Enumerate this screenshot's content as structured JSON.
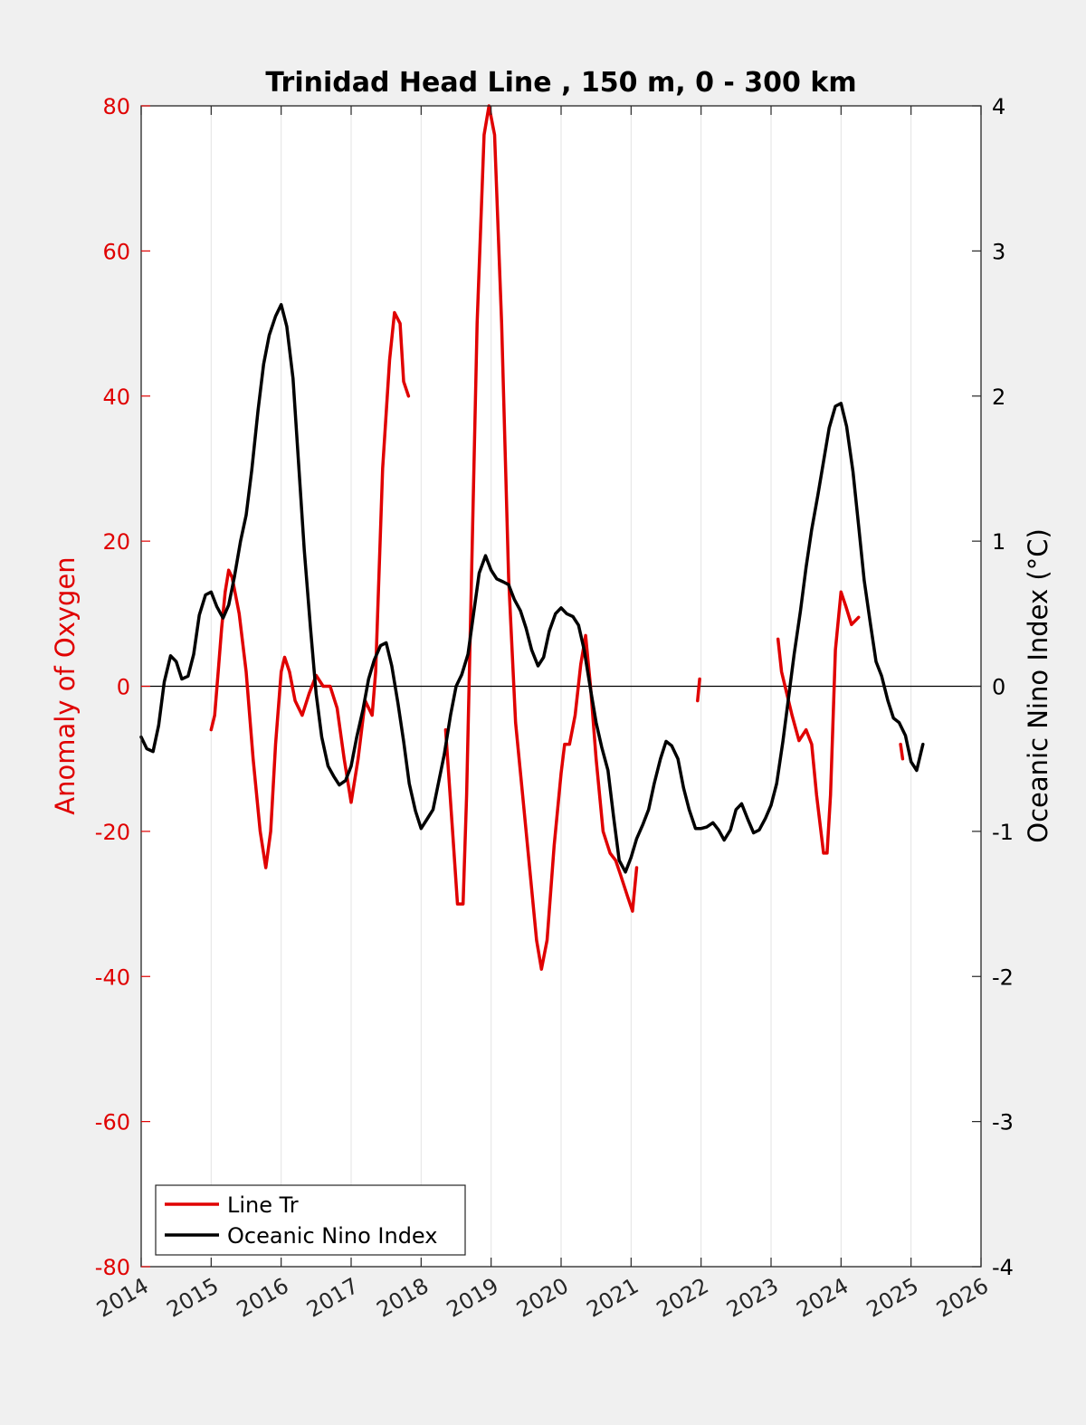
{
  "chart_data": {
    "type": "line",
    "title": "Trinidad Head Line , 150 m, 0 - 300 km",
    "xlabel": "",
    "ylabel_left": "Anomaly of Oxygen",
    "ylabel_right": "Oceanic Nino Index (°C)",
    "xlim": [
      2014,
      2026
    ],
    "ylim_left": [
      -80,
      80
    ],
    "ylim_right": [
      -4,
      4
    ],
    "x_ticks": [
      "2014",
      "2015",
      "2016",
      "2017",
      "2018",
      "2019",
      "2020",
      "2021",
      "2022",
      "2023",
      "2024",
      "2025",
      "2026"
    ],
    "y_ticks_left": [
      "80",
      "60",
      "40",
      "20",
      "0",
      "-20",
      "-40",
      "-60",
      "-80"
    ],
    "y_ticks_right": [
      "4",
      "3",
      "2",
      "1",
      "0",
      "-1",
      "-2",
      "-3",
      "-4"
    ],
    "grid": "vertical",
    "legend": "bottom-left",
    "colors": {
      "left_axis": "#e00000",
      "right_axis": "#000000",
      "series_red": "#e00000",
      "series_black": "#000000",
      "zero_line": "#000000"
    },
    "series": [
      {
        "name": "Line Tr",
        "axis": "left",
        "color": "#e00000",
        "segments": [
          [
            [
              2015.0,
              -6
            ],
            [
              2015.05,
              -4
            ],
            [
              2015.1,
              2
            ],
            [
              2015.15,
              8
            ],
            [
              2015.2,
              13
            ],
            [
              2015.25,
              16
            ],
            [
              2015.3,
              15
            ],
            [
              2015.4,
              10
            ],
            [
              2015.5,
              2
            ],
            [
              2015.6,
              -10
            ],
            [
              2015.7,
              -20
            ],
            [
              2015.78,
              -25
            ],
            [
              2015.85,
              -20
            ],
            [
              2015.92,
              -8
            ],
            [
              2016.0,
              2
            ],
            [
              2016.05,
              4
            ],
            [
              2016.12,
              2
            ],
            [
              2016.2,
              -2
            ],
            [
              2016.3,
              -4
            ],
            [
              2016.4,
              -1
            ],
            [
              2016.5,
              1.5
            ],
            [
              2016.6,
              0
            ],
            [
              2016.7,
              0
            ],
            [
              2016.8,
              -3
            ],
            [
              2016.9,
              -10
            ],
            [
              2017.0,
              -16
            ],
            [
              2017.1,
              -10
            ],
            [
              2017.2,
              -2
            ],
            [
              2017.3,
              -4
            ],
            [
              2017.35,
              2
            ],
            [
              2017.45,
              30
            ],
            [
              2017.55,
              45
            ],
            [
              2017.62,
              51.5
            ],
            [
              2017.7,
              50
            ],
            [
              2017.75,
              42
            ],
            [
              2017.82,
              40
            ]
          ],
          [
            [
              2018.35,
              -6
            ],
            [
              2018.45,
              -20
            ],
            [
              2018.52,
              -30
            ],
            [
              2018.6,
              -30
            ],
            [
              2018.65,
              -15
            ],
            [
              2018.72,
              15
            ],
            [
              2018.8,
              50
            ],
            [
              2018.9,
              76
            ],
            [
              2018.97,
              80
            ],
            [
              2019.05,
              76
            ],
            [
              2019.15,
              50
            ],
            [
              2019.25,
              15
            ],
            [
              2019.35,
              -5
            ],
            [
              2019.45,
              -15
            ],
            [
              2019.55,
              -25
            ],
            [
              2019.65,
              -35
            ],
            [
              2019.72,
              -39
            ],
            [
              2019.8,
              -35
            ],
            [
              2019.9,
              -22
            ],
            [
              2020.0,
              -12
            ],
            [
              2020.05,
              -8
            ],
            [
              2020.12,
              -8
            ],
            [
              2020.2,
              -4
            ],
            [
              2020.28,
              3
            ],
            [
              2020.35,
              7
            ],
            [
              2020.42,
              0
            ],
            [
              2020.5,
              -10
            ],
            [
              2020.6,
              -20
            ],
            [
              2020.7,
              -23
            ],
            [
              2020.78,
              -24
            ],
            [
              2020.85,
              -26
            ],
            [
              2020.95,
              -29
            ],
            [
              2021.02,
              -31
            ],
            [
              2021.08,
              -25
            ]
          ],
          [
            [
              2021.95,
              -2
            ],
            [
              2021.98,
              1
            ]
          ],
          [
            [
              2023.1,
              6.5
            ],
            [
              2023.15,
              2
            ],
            [
              2023.3,
              -4
            ],
            [
              2023.4,
              -7.5
            ],
            [
              2023.5,
              -6
            ],
            [
              2023.58,
              -8
            ],
            [
              2023.65,
              -15
            ],
            [
              2023.75,
              -23
            ],
            [
              2023.8,
              -23
            ],
            [
              2023.85,
              -15
            ],
            [
              2023.92,
              5
            ],
            [
              2024.0,
              13
            ],
            [
              2024.07,
              11
            ],
            [
              2024.15,
              8.5
            ],
            [
              2024.25,
              9.5
            ]
          ],
          [
            [
              2024.85,
              -8
            ],
            [
              2024.88,
              -10
            ]
          ]
        ]
      },
      {
        "name": "Oceanic Nino Index",
        "axis": "right",
        "color": "#000000",
        "segments": [
          [
            [
              2014.0,
              -0.35
            ],
            [
              2014.08,
              -0.43
            ],
            [
              2014.17,
              -0.45
            ],
            [
              2014.25,
              -0.27
            ],
            [
              2014.33,
              0.03
            ],
            [
              2014.42,
              0.21
            ],
            [
              2014.5,
              0.17
            ],
            [
              2014.58,
              0.05
            ],
            [
              2014.67,
              0.07
            ],
            [
              2014.75,
              0.22
            ],
            [
              2014.83,
              0.49
            ],
            [
              2014.92,
              0.63
            ],
            [
              2015.0,
              0.65
            ],
            [
              2015.08,
              0.55
            ],
            [
              2015.17,
              0.47
            ],
            [
              2015.25,
              0.56
            ],
            [
              2015.33,
              0.75
            ],
            [
              2015.42,
              1.0
            ],
            [
              2015.5,
              1.18
            ],
            [
              2015.58,
              1.49
            ],
            [
              2015.67,
              1.9
            ],
            [
              2015.75,
              2.22
            ],
            [
              2015.83,
              2.42
            ],
            [
              2015.92,
              2.55
            ],
            [
              2016.0,
              2.63
            ],
            [
              2016.08,
              2.48
            ],
            [
              2016.17,
              2.12
            ],
            [
              2016.25,
              1.53
            ],
            [
              2016.33,
              0.94
            ],
            [
              2016.42,
              0.4
            ],
            [
              2016.5,
              -0.05
            ],
            [
              2016.58,
              -0.35
            ],
            [
              2016.67,
              -0.55
            ],
            [
              2016.75,
              -0.62
            ],
            [
              2016.83,
              -0.68
            ],
            [
              2016.92,
              -0.65
            ],
            [
              2017.0,
              -0.55
            ],
            [
              2017.08,
              -0.35
            ],
            [
              2017.17,
              -0.16
            ],
            [
              2017.25,
              0.05
            ],
            [
              2017.33,
              0.18
            ],
            [
              2017.42,
              0.28
            ],
            [
              2017.5,
              0.3
            ],
            [
              2017.58,
              0.14
            ],
            [
              2017.67,
              -0.12
            ],
            [
              2017.75,
              -0.38
            ],
            [
              2017.83,
              -0.67
            ],
            [
              2017.92,
              -0.86
            ],
            [
              2018.0,
              -0.98
            ],
            [
              2018.08,
              -0.92
            ],
            [
              2018.17,
              -0.85
            ],
            [
              2018.25,
              -0.66
            ],
            [
              2018.33,
              -0.47
            ],
            [
              2018.42,
              -0.2
            ],
            [
              2018.5,
              0.0
            ],
            [
              2018.58,
              0.08
            ],
            [
              2018.67,
              0.22
            ],
            [
              2018.75,
              0.5
            ],
            [
              2018.83,
              0.78
            ],
            [
              2018.92,
              0.9
            ],
            [
              2019.0,
              0.8
            ],
            [
              2019.08,
              0.74
            ],
            [
              2019.17,
              0.72
            ],
            [
              2019.25,
              0.7
            ],
            [
              2019.33,
              0.6
            ],
            [
              2019.42,
              0.52
            ],
            [
              2019.5,
              0.4
            ],
            [
              2019.58,
              0.25
            ],
            [
              2019.67,
              0.14
            ],
            [
              2019.75,
              0.2
            ],
            [
              2019.83,
              0.38
            ],
            [
              2019.92,
              0.5
            ],
            [
              2020.0,
              0.54
            ],
            [
              2020.08,
              0.5
            ],
            [
              2020.17,
              0.48
            ],
            [
              2020.25,
              0.42
            ],
            [
              2020.33,
              0.25
            ],
            [
              2020.42,
              -0.02
            ],
            [
              2020.5,
              -0.25
            ],
            [
              2020.58,
              -0.42
            ],
            [
              2020.67,
              -0.58
            ],
            [
              2020.75,
              -0.9
            ],
            [
              2020.83,
              -1.2
            ],
            [
              2020.92,
              -1.28
            ],
            [
              2021.0,
              -1.18
            ],
            [
              2021.08,
              -1.05
            ],
            [
              2021.17,
              -0.95
            ],
            [
              2021.25,
              -0.85
            ],
            [
              2021.33,
              -0.67
            ],
            [
              2021.42,
              -0.5
            ],
            [
              2021.5,
              -0.38
            ],
            [
              2021.58,
              -0.41
            ],
            [
              2021.67,
              -0.5
            ],
            [
              2021.75,
              -0.7
            ],
            [
              2021.83,
              -0.85
            ],
            [
              2021.92,
              -0.98
            ],
            [
              2022.0,
              -0.98
            ],
            [
              2022.08,
              -0.97
            ],
            [
              2022.17,
              -0.94
            ],
            [
              2022.25,
              -0.99
            ],
            [
              2022.33,
              -1.06
            ],
            [
              2022.42,
              -0.99
            ],
            [
              2022.5,
              -0.85
            ],
            [
              2022.58,
              -0.81
            ],
            [
              2022.67,
              -0.92
            ],
            [
              2022.75,
              -1.01
            ],
            [
              2022.83,
              -0.99
            ],
            [
              2022.92,
              -0.91
            ],
            [
              2023.0,
              -0.82
            ],
            [
              2023.08,
              -0.67
            ],
            [
              2023.17,
              -0.38
            ],
            [
              2023.25,
              -0.08
            ],
            [
              2023.33,
              0.22
            ],
            [
              2023.42,
              0.52
            ],
            [
              2023.5,
              0.82
            ],
            [
              2023.58,
              1.08
            ],
            [
              2023.67,
              1.32
            ],
            [
              2023.75,
              1.55
            ],
            [
              2023.83,
              1.78
            ],
            [
              2023.92,
              1.93
            ],
            [
              2024.0,
              1.95
            ],
            [
              2024.08,
              1.79
            ],
            [
              2024.17,
              1.48
            ],
            [
              2024.25,
              1.11
            ],
            [
              2024.33,
              0.73
            ],
            [
              2024.42,
              0.43
            ],
            [
              2024.5,
              0.17
            ],
            [
              2024.58,
              0.07
            ],
            [
              2024.67,
              -0.1
            ],
            [
              2024.75,
              -0.22
            ],
            [
              2024.83,
              -0.25
            ],
            [
              2024.92,
              -0.34
            ],
            [
              2025.0,
              -0.52
            ],
            [
              2025.08,
              -0.58
            ],
            [
              2025.17,
              -0.4
            ]
          ]
        ]
      }
    ]
  }
}
